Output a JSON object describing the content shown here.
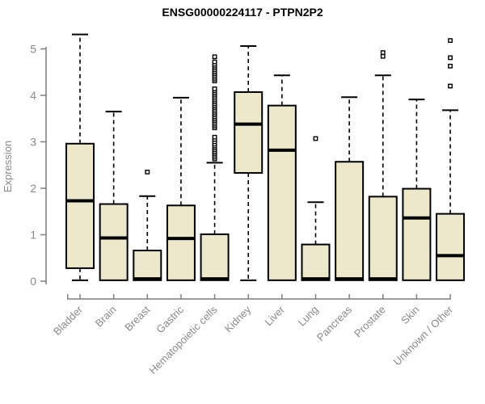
{
  "colors": {
    "background": "#ffffff",
    "box_fill": "#EDE7CB",
    "box_border": "#000000",
    "median": "#000000",
    "whisker": "#000000",
    "axis": "#7f7f7f",
    "tick_label": "#8a8a8a",
    "title": "#000000"
  },
  "chart_data": {
    "type": "boxplot",
    "title": "ENSG00000224117 - PTPN2P2",
    "ylabel": "Expression",
    "xlabel": "",
    "ylim": [
      0,
      5
    ],
    "yticks": [
      0,
      1,
      2,
      3,
      4,
      5
    ],
    "grid": false,
    "legend": "none",
    "categories": [
      "Bladder",
      "Brain",
      "Breast",
      "Gastric",
      "Hematopoietic cells",
      "Kidney",
      "Liver",
      "Lung",
      "Pancreas",
      "Prostate",
      "Skin",
      "Unknown / Other"
    ],
    "boxes": [
      {
        "category": "Bladder",
        "whisker_low": 0.02,
        "q1": 0.28,
        "median": 1.73,
        "q3": 2.96,
        "whisker_high": 5.31,
        "outliers": []
      },
      {
        "category": "Brain",
        "whisker_low": 0.02,
        "q1": 0.02,
        "median": 0.93,
        "q3": 1.66,
        "whisker_high": 3.65,
        "outliers": []
      },
      {
        "category": "Breast",
        "whisker_low": 0.02,
        "q1": 0.02,
        "median": 0.05,
        "q3": 0.66,
        "whisker_high": 1.83,
        "outliers": [
          2.35
        ]
      },
      {
        "category": "Gastric",
        "whisker_low": 0.02,
        "q1": 0.02,
        "median": 0.92,
        "q3": 1.63,
        "whisker_high": 3.95,
        "outliers": []
      },
      {
        "category": "Hematopoietic cells",
        "whisker_low": 0.02,
        "q1": 0.02,
        "median": 0.05,
        "q3": 1.01,
        "whisker_high": 2.55,
        "outliers": [
          2.63,
          2.67,
          2.71,
          2.75,
          2.79,
          2.83,
          2.87,
          2.91,
          2.95,
          3.0,
          3.05,
          3.1,
          3.3,
          3.34,
          3.38,
          3.42,
          3.46,
          3.5,
          3.54,
          3.58,
          3.62,
          3.66,
          3.7,
          3.74,
          3.78,
          3.82,
          3.86,
          3.9,
          3.94,
          3.98,
          4.02,
          4.06,
          4.1,
          4.14,
          4.31,
          4.35,
          4.39,
          4.43,
          4.47,
          4.51,
          4.55,
          4.59,
          4.63,
          4.67,
          4.72,
          4.83
        ]
      },
      {
        "category": "Kidney",
        "whisker_low": 0.02,
        "q1": 2.33,
        "median": 3.38,
        "q3": 4.07,
        "whisker_high": 5.06,
        "outliers": []
      },
      {
        "category": "Liver",
        "whisker_low": 0.02,
        "q1": 0.02,
        "median": 2.82,
        "q3": 3.78,
        "whisker_high": 4.43,
        "outliers": []
      },
      {
        "category": "Lung",
        "whisker_low": 0.02,
        "q1": 0.02,
        "median": 0.05,
        "q3": 0.79,
        "whisker_high": 1.7,
        "outliers": [
          3.07
        ]
      },
      {
        "category": "Pancreas",
        "whisker_low": 0.02,
        "q1": 0.02,
        "median": 0.05,
        "q3": 2.57,
        "whisker_high": 3.96,
        "outliers": []
      },
      {
        "category": "Prostate",
        "whisker_low": 0.02,
        "q1": 0.02,
        "median": 0.05,
        "q3": 1.82,
        "whisker_high": 4.43,
        "outliers": [
          4.84,
          4.92
        ]
      },
      {
        "category": "Skin",
        "whisker_low": 0.02,
        "q1": 0.02,
        "median": 1.36,
        "q3": 1.99,
        "whisker_high": 3.91,
        "outliers": []
      },
      {
        "category": "Unknown / Other",
        "whisker_low": 0.02,
        "q1": 0.02,
        "median": 0.55,
        "q3": 1.45,
        "whisker_high": 3.68,
        "outliers": [
          4.2,
          4.63,
          4.81,
          5.18
        ]
      }
    ]
  }
}
